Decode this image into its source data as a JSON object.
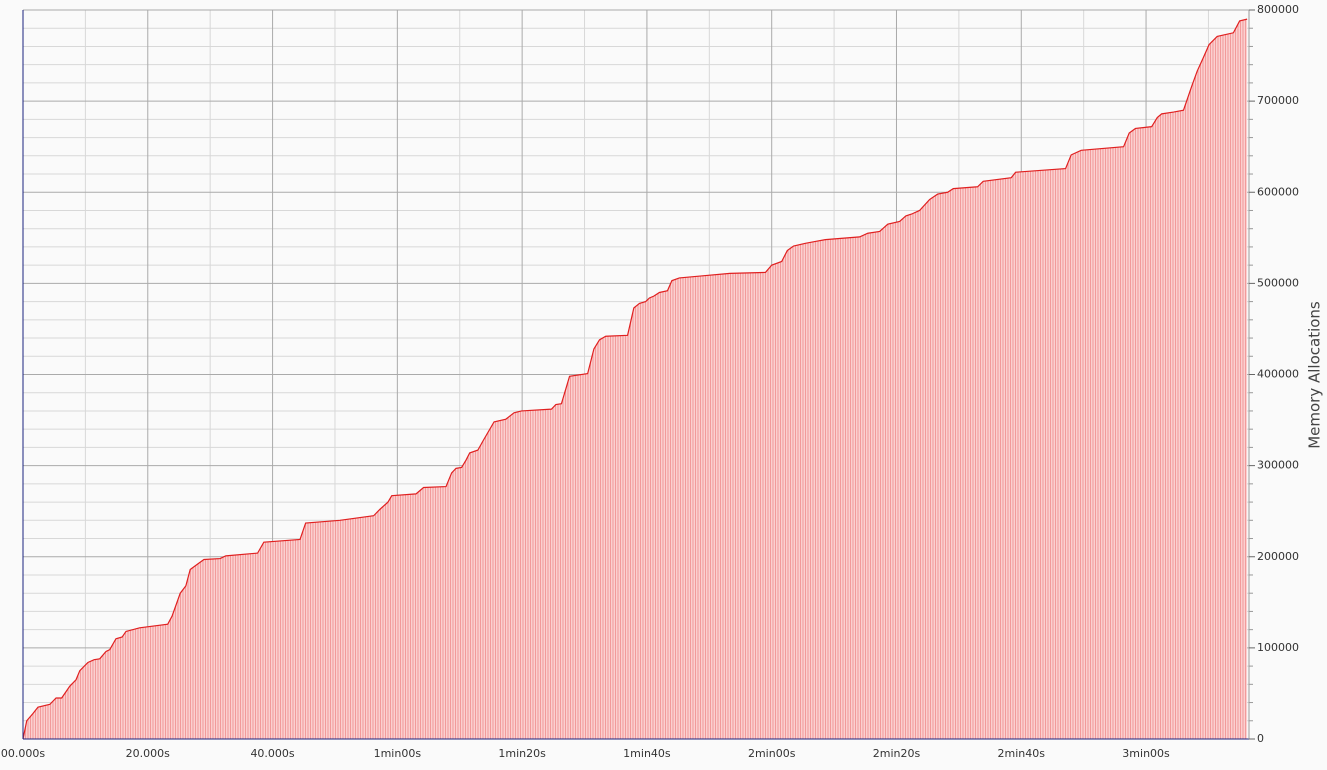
{
  "chart_data": {
    "type": "area",
    "y_label": "Memory Allocations",
    "color": "#e02020",
    "fill": "#f9c4c4",
    "grid": true,
    "xlim": [
      0,
      196.5
    ],
    "ylim": [
      0,
      800000
    ],
    "xticks": [
      {
        "value": 0,
        "label": "00.000s"
      },
      {
        "value": 20,
        "label": "20.000s"
      },
      {
        "value": 40,
        "label": "40.000s"
      },
      {
        "value": 60,
        "label": "1min00s"
      },
      {
        "value": 80,
        "label": "1min20s"
      },
      {
        "value": 100,
        "label": "1min40s"
      },
      {
        "value": 120,
        "label": "2min00s"
      },
      {
        "value": 140,
        "label": "2min20s"
      },
      {
        "value": 160,
        "label": "2min40s"
      },
      {
        "value": 180,
        "label": "3min00s"
      }
    ],
    "yticks": [
      0,
      100000,
      200000,
      300000,
      400000,
      500000,
      600000,
      700000,
      800000
    ],
    "series": [
      {
        "name": null,
        "x": [
          0,
          0.6,
          1.6,
          2.4,
          4.3,
          5.3,
          6.2,
          7.5,
          8.5,
          9.1,
          10.4,
          11.4,
          12.3,
          13.3,
          13.9,
          14.9,
          15.9,
          16.5,
          18.7,
          23.2,
          23.9,
          25.2,
          26.1,
          26.8,
          28.0,
          29.0,
          31.6,
          32.5,
          37.6,
          38.6,
          44.4,
          45.3,
          50.8,
          56.2,
          57.2,
          58.5,
          59.1,
          63.0,
          64.2,
          67.8,
          68.7,
          69.4,
          70.3,
          71.0,
          71.6,
          72.9,
          73.8,
          75.5,
          77.4,
          78.7,
          79.9,
          84.7,
          85.4,
          86.3,
          87.6,
          90.5,
          91.5,
          92.4,
          93.4,
          96.9,
          97.9,
          98.8,
          99.8,
          100.4,
          101.1,
          102.0,
          103.3,
          104.0,
          105.2,
          108.5,
          113.3,
          119.0,
          120.0,
          121.6,
          122.5,
          123.5,
          125.4,
          127.0,
          128.6,
          134.1,
          135.4,
          137.3,
          138.6,
          140.5,
          141.5,
          142.4,
          143.7,
          145.3,
          146.6,
          148.2,
          149.1,
          153.0,
          153.9,
          158.4,
          159.1,
          167.1,
          168.0,
          169.6,
          176.4,
          177.3,
          178.3,
          180.9,
          181.8,
          182.5,
          184.4,
          186.0,
          187.3,
          188.2,
          189.2,
          190.1,
          191.4,
          194.0,
          195.0,
          196.2
        ],
        "values": [
          0,
          20000,
          28000,
          35000,
          38000,
          45000,
          45000,
          58000,
          65000,
          75000,
          84000,
          87000,
          88000,
          96000,
          98000,
          110000,
          112000,
          118000,
          122000,
          126000,
          135000,
          160000,
          168000,
          186000,
          192000,
          197000,
          198000,
          201000,
          204000,
          216000,
          219000,
          237000,
          240000,
          245000,
          252000,
          260000,
          267000,
          269000,
          276000,
          277000,
          292000,
          297000,
          298000,
          306000,
          314000,
          317000,
          328000,
          348000,
          351000,
          358000,
          360000,
          362000,
          367000,
          368000,
          398000,
          401000,
          428000,
          438000,
          442000,
          443000,
          473000,
          478000,
          480000,
          484000,
          486000,
          490000,
          492000,
          503000,
          506000,
          508000,
          511000,
          512000,
          520000,
          524000,
          536000,
          541000,
          544000,
          546000,
          548000,
          551000,
          555000,
          557000,
          565000,
          568000,
          574000,
          576000,
          580000,
          592000,
          598000,
          600000,
          604000,
          606000,
          612000,
          616000,
          622000,
          626000,
          641000,
          646000,
          650000,
          665000,
          670000,
          672000,
          682000,
          686000,
          688000,
          690000,
          716000,
          733000,
          748000,
          762000,
          771000,
          775000,
          788000,
          790000
        ]
      }
    ]
  }
}
